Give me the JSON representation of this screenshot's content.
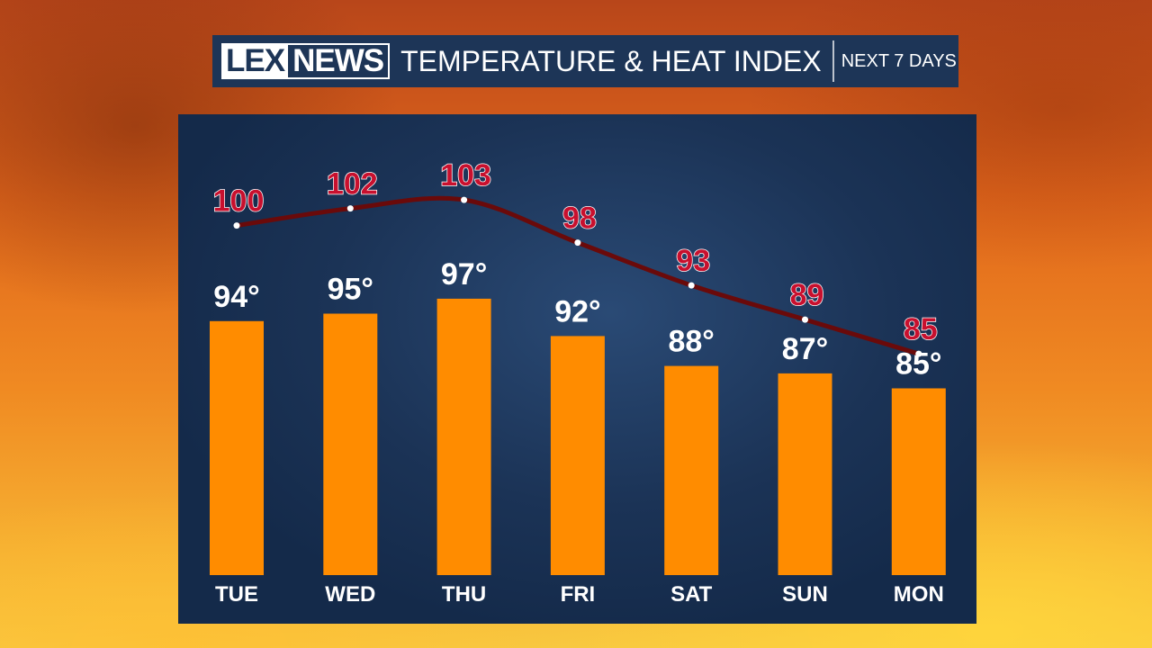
{
  "header": {
    "logo_part1": "LEX",
    "logo_part2": "NEWS",
    "title": "TEMPERATURE & HEAT INDEX",
    "subtitle": "NEXT 7 DAYS"
  },
  "colors": {
    "bar": "#ff8c00",
    "heat_index_text": "#c8102e",
    "heat_index_line": "#6a0a0a",
    "panel": "#1d3557"
  },
  "chart_data": {
    "type": "bar",
    "title": "TEMPERATURE & HEAT INDEX",
    "subtitle": "NEXT 7 DAYS",
    "categories": [
      "TUE",
      "WED",
      "THU",
      "FRI",
      "SAT",
      "SUN",
      "MON"
    ],
    "series": [
      {
        "type": "bar",
        "values": [
          94,
          95,
          97,
          92,
          88,
          87,
          85
        ],
        "unit": "°"
      },
      {
        "type": "line",
        "values": [
          100,
          102,
          103,
          98,
          93,
          89,
          85
        ]
      }
    ],
    "ylim": [
      60,
      110
    ],
    "grid": false,
    "legend": "none"
  }
}
